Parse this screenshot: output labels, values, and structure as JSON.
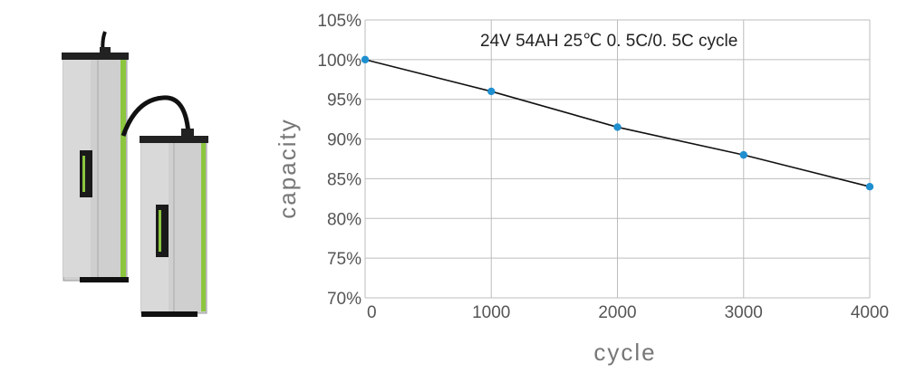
{
  "colors": {
    "line": "#111111",
    "marker": "#1f8fd0",
    "grid": "#bdbdbd",
    "battery_body": "#c9c9c9",
    "battery_trim": "#8cc63f",
    "battery_cap": "#222222"
  },
  "chart_data": {
    "type": "line",
    "title": "24V 54AH 25℃ 0. 5C/0. 5C cycle",
    "xlabel": "cycle",
    "ylabel": "capacity",
    "x": [
      0,
      1000,
      2000,
      3000,
      4000
    ],
    "series": [
      {
        "values": [
          100,
          96,
          91.5,
          88,
          84
        ]
      }
    ],
    "xlim": [
      0,
      4000
    ],
    "ylim": [
      70,
      105
    ],
    "xticks": [
      0,
      1000,
      2000,
      3000,
      4000
    ],
    "xtick_labels": [
      "0",
      "1000",
      "2000",
      "3000",
      "4000"
    ],
    "yticks": [
      70,
      75,
      80,
      85,
      90,
      95,
      100,
      105
    ],
    "ytick_labels": [
      "70%",
      "75%",
      "80%",
      "85%",
      "90%",
      "95%",
      "100%",
      "105%"
    ],
    "grid": true,
    "legend": "none"
  }
}
